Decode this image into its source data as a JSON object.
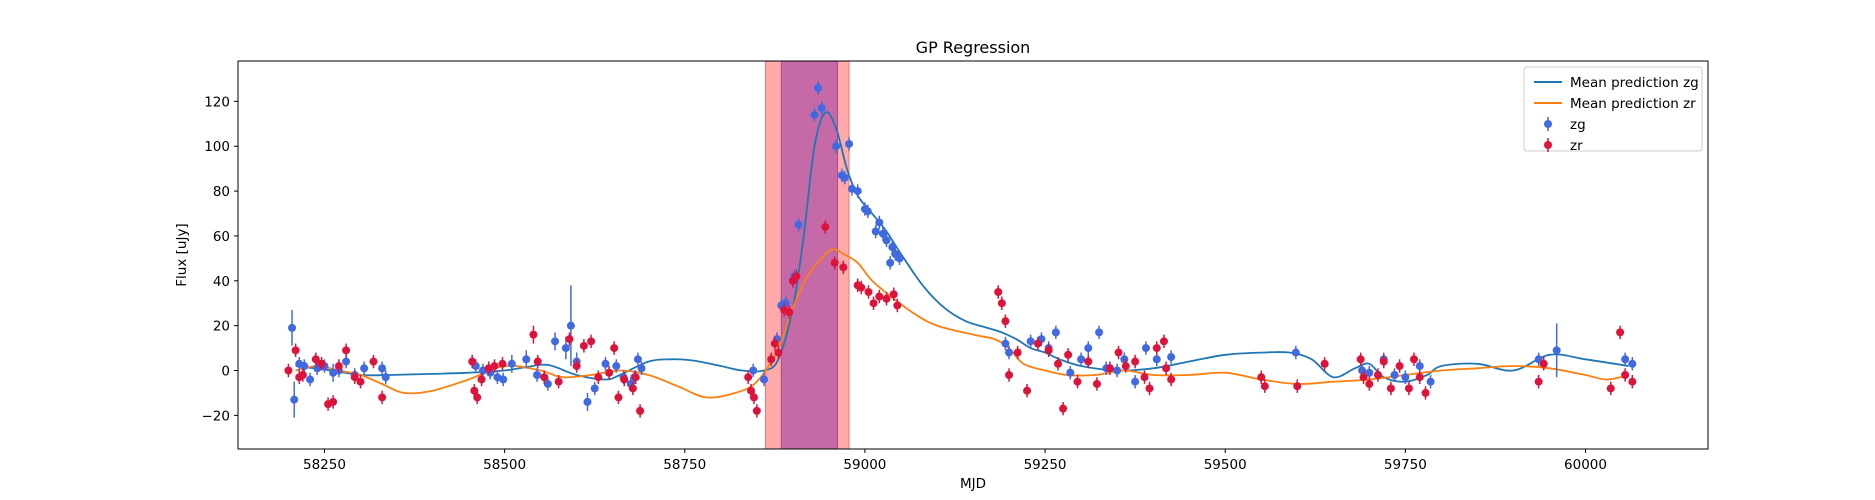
{
  "chart_data": {
    "type": "scatter",
    "title": "GP Regression",
    "xlabel": "MJD",
    "ylabel": "Flux [uJy]",
    "xlim": [
      58130,
      60170
    ],
    "ylim": [
      -35,
      138
    ],
    "xticks": [
      58250,
      58500,
      58750,
      59000,
      59250,
      59500,
      59750,
      60000
    ],
    "yticks": [
      -20,
      0,
      20,
      40,
      60,
      80,
      100,
      120
    ],
    "colors": {
      "zg": "#4169e1",
      "zr": "#dc143c",
      "mean_zg": "#1f77b4",
      "mean_zr": "#ff7f0e",
      "span_outer": "#ff9a9a",
      "span_inner": "#c266a6"
    },
    "spans": [
      {
        "name": "outer-window",
        "x0": 58862,
        "x1": 58978
      },
      {
        "name": "inner-window",
        "x0": 58884,
        "x1": 58962
      }
    ],
    "legend": [
      {
        "label": "Mean prediction zg",
        "kind": "line",
        "color_key": "mean_zg"
      },
      {
        "label": "Mean prediction zr",
        "kind": "line",
        "color_key": "mean_zr"
      },
      {
        "label": "zg",
        "kind": "errorbar",
        "color_key": "zg"
      },
      {
        "label": "zr",
        "kind": "errorbar",
        "color_key": "zr"
      }
    ],
    "legend_position": "top-right",
    "mean_prediction": [
      {
        "name": "Mean prediction zg",
        "x": [
          58210,
          58260,
          58300,
          58340,
          58400,
          58450,
          58500,
          58530,
          58560,
          58600,
          58640,
          58660,
          58700,
          58730,
          58760,
          58800,
          58830,
          58860,
          58880,
          58900,
          58915,
          58930,
          58945,
          58960,
          58975,
          58990,
          59010,
          59030,
          59050,
          59080,
          59110,
          59140,
          59170,
          59190,
          59210,
          59230,
          59250,
          59270,
          59300,
          59350,
          59400,
          59450,
          59500,
          59550,
          59590,
          59620,
          59650,
          59680,
          59700,
          59720,
          59750,
          59780,
          59800,
          59850,
          59900,
          59950,
          60000,
          60060
        ],
        "y": [
          2,
          0,
          -2,
          -2,
          -1.5,
          -1,
          0,
          1.5,
          2.5,
          -2,
          -4,
          -2,
          4,
          5,
          4.5,
          2,
          0,
          0,
          5,
          28,
          60,
          100,
          115,
          108,
          90,
          78,
          70,
          62,
          52,
          38,
          28,
          22,
          19,
          17,
          14,
          10,
          8,
          5,
          2,
          0,
          1,
          4,
          7,
          8,
          8,
          5,
          -3,
          1,
          3,
          -3,
          -5,
          -2,
          2,
          3,
          0,
          7,
          5,
          2
        ]
      },
      {
        "name": "Mean prediction zr",
        "x": [
          58210,
          58240,
          58270,
          58300,
          58330,
          58360,
          58400,
          58450,
          58500,
          58550,
          58580,
          58620,
          58660,
          58700,
          58740,
          58780,
          58820,
          58850,
          58880,
          58900,
          58920,
          58940,
          58955,
          58970,
          58990,
          59010,
          59040,
          59070,
          59100,
          59150,
          59180,
          59200,
          59220,
          59250,
          59280,
          59320,
          59360,
          59400,
          59450,
          59500,
          59550,
          59600,
          59650,
          59700,
          59750,
          59800,
          59850,
          59900,
          59950,
          60000,
          60030,
          60060
        ],
        "y": [
          0,
          2,
          0,
          -2,
          -6,
          -10,
          -9,
          -4,
          2,
          0,
          -3,
          -2,
          0,
          -2,
          -7,
          -12,
          -10,
          -5,
          10,
          28,
          42,
          50,
          54,
          52,
          48,
          40,
          32,
          25,
          20,
          16,
          14,
          10,
          3,
          0,
          -2,
          -2,
          0,
          -2,
          -2,
          -1,
          -4,
          -6,
          -5,
          -4,
          -2,
          0,
          1,
          2,
          1,
          -2,
          -4,
          -2
        ]
      }
    ],
    "series": [
      {
        "name": "zg",
        "points": [
          [
            58205,
            19,
            8
          ],
          [
            58208,
            -13,
            8
          ],
          [
            58215,
            3,
            3
          ],
          [
            58222,
            2,
            3
          ],
          [
            58230,
            -4,
            3
          ],
          [
            58240,
            1,
            3
          ],
          [
            58250,
            2,
            3
          ],
          [
            58262,
            -1,
            4
          ],
          [
            58270,
            0,
            3
          ],
          [
            58280,
            4,
            3
          ],
          [
            58292,
            -2,
            3
          ],
          [
            58305,
            1,
            3
          ],
          [
            58330,
            1,
            3
          ],
          [
            58335,
            -3,
            3
          ],
          [
            58460,
            2,
            3
          ],
          [
            58470,
            0,
            3
          ],
          [
            58480,
            -1,
            3
          ],
          [
            58490,
            -3,
            3
          ],
          [
            58498,
            -4,
            3
          ],
          [
            58510,
            3,
            4
          ],
          [
            58530,
            5,
            4
          ],
          [
            58545,
            -2,
            3
          ],
          [
            58560,
            -6,
            3
          ],
          [
            58570,
            13,
            4
          ],
          [
            58585,
            10,
            5
          ],
          [
            58592,
            20,
            18
          ],
          [
            58600,
            4,
            4
          ],
          [
            58615,
            -14,
            4
          ],
          [
            58625,
            -8,
            3
          ],
          [
            58640,
            3,
            3
          ],
          [
            58655,
            2,
            3
          ],
          [
            58665,
            -3,
            3
          ],
          [
            58675,
            -6,
            3
          ],
          [
            58680,
            -3,
            3
          ],
          [
            58685,
            5,
            3
          ],
          [
            58690,
            1,
            3
          ],
          [
            58845,
            0,
            3
          ],
          [
            58860,
            -4,
            3
          ],
          [
            58878,
            14,
            3
          ],
          [
            58884,
            29,
            3
          ],
          [
            58890,
            30,
            3
          ],
          [
            58902,
            42,
            3
          ],
          [
            58908,
            65,
            3
          ],
          [
            58930,
            114,
            3
          ],
          [
            58935,
            126,
            3
          ],
          [
            58940,
            117,
            3
          ],
          [
            58960,
            100,
            3
          ],
          [
            58968,
            87,
            3
          ],
          [
            58972,
            86,
            3
          ],
          [
            58978,
            101,
            3
          ],
          [
            58982,
            81,
            3
          ],
          [
            58990,
            80,
            3
          ],
          [
            59000,
            72,
            3
          ],
          [
            59004,
            71,
            3
          ],
          [
            59015,
            62,
            3
          ],
          [
            59020,
            66,
            3
          ],
          [
            59025,
            61,
            3
          ],
          [
            59030,
            58,
            3
          ],
          [
            59035,
            48,
            3
          ],
          [
            59038,
            55,
            3
          ],
          [
            59042,
            52,
            3
          ],
          [
            59048,
            50,
            3
          ],
          [
            59195,
            12,
            3
          ],
          [
            59200,
            8,
            3
          ],
          [
            59230,
            13,
            3
          ],
          [
            59245,
            14,
            3
          ],
          [
            59255,
            10,
            3
          ],
          [
            59265,
            17,
            3
          ],
          [
            59285,
            -1,
            3
          ],
          [
            59300,
            5,
            3
          ],
          [
            59310,
            10,
            3
          ],
          [
            59325,
            17,
            3
          ],
          [
            59335,
            1,
            3
          ],
          [
            59350,
            0,
            3
          ],
          [
            59360,
            5,
            3
          ],
          [
            59375,
            -5,
            3
          ],
          [
            59390,
            10,
            3
          ],
          [
            59405,
            5,
            3
          ],
          [
            59425,
            6,
            3
          ],
          [
            59598,
            8,
            3
          ],
          [
            59690,
            0,
            3
          ],
          [
            59700,
            -1,
            3
          ],
          [
            59720,
            5,
            3
          ],
          [
            59735,
            -2,
            3
          ],
          [
            59750,
            -3,
            3
          ],
          [
            59770,
            2,
            3
          ],
          [
            59785,
            -5,
            3
          ],
          [
            59935,
            5,
            3
          ],
          [
            59960,
            9,
            12
          ],
          [
            60055,
            5,
            3
          ],
          [
            60065,
            3,
            3
          ]
        ]
      },
      {
        "name": "zr",
        "points": [
          [
            58200,
            0,
            3
          ],
          [
            58210,
            9,
            3
          ],
          [
            58215,
            -3,
            3
          ],
          [
            58220,
            -2,
            3
          ],
          [
            58238,
            5,
            3
          ],
          [
            58246,
            3,
            3
          ],
          [
            58255,
            -15,
            3
          ],
          [
            58262,
            -14,
            3
          ],
          [
            58270,
            2,
            3
          ],
          [
            58280,
            9,
            3
          ],
          [
            58292,
            -3,
            3
          ],
          [
            58300,
            -5,
            3
          ],
          [
            58318,
            4,
            3
          ],
          [
            58330,
            -12,
            3
          ],
          [
            58455,
            4,
            3
          ],
          [
            58458,
            -9,
            3
          ],
          [
            58462,
            -12,
            3
          ],
          [
            58468,
            -4,
            3
          ],
          [
            58478,
            1,
            3
          ],
          [
            58486,
            2,
            3
          ],
          [
            58497,
            3,
            3
          ],
          [
            58540,
            16,
            4
          ],
          [
            58546,
            4,
            3
          ],
          [
            58555,
            -3,
            3
          ],
          [
            58575,
            -5,
            3
          ],
          [
            58590,
            14,
            3
          ],
          [
            58600,
            2,
            3
          ],
          [
            58610,
            11,
            3
          ],
          [
            58620,
            13,
            3
          ],
          [
            58630,
            -3,
            3
          ],
          [
            58645,
            -1,
            3
          ],
          [
            58652,
            10,
            3
          ],
          [
            58658,
            -12,
            3
          ],
          [
            58666,
            -4,
            3
          ],
          [
            58678,
            -8,
            3
          ],
          [
            58682,
            -3,
            3
          ],
          [
            58688,
            -18,
            3
          ],
          [
            58838,
            -3,
            3
          ],
          [
            58842,
            -9,
            3
          ],
          [
            58846,
            -12,
            3
          ],
          [
            58850,
            -18,
            3
          ],
          [
            58870,
            5,
            3
          ],
          [
            58875,
            12,
            3
          ],
          [
            58880,
            8,
            3
          ],
          [
            58888,
            27,
            3
          ],
          [
            58895,
            26,
            3
          ],
          [
            58900,
            40,
            3
          ],
          [
            58905,
            42,
            3
          ],
          [
            58945,
            64,
            3
          ],
          [
            58958,
            48,
            3
          ],
          [
            58970,
            46,
            3
          ],
          [
            58990,
            38,
            3
          ],
          [
            58995,
            37,
            3
          ],
          [
            59005,
            35,
            3
          ],
          [
            59012,
            30,
            3
          ],
          [
            59020,
            33,
            3
          ],
          [
            59030,
            32,
            3
          ],
          [
            59040,
            34,
            3
          ],
          [
            59045,
            29,
            3
          ],
          [
            59185,
            35,
            3
          ],
          [
            59190,
            30,
            3
          ],
          [
            59195,
            22,
            3
          ],
          [
            59200,
            -2,
            3
          ],
          [
            59212,
            8,
            3
          ],
          [
            59225,
            -9,
            3
          ],
          [
            59240,
            12,
            3
          ],
          [
            59255,
            9,
            3
          ],
          [
            59268,
            3,
            3
          ],
          [
            59275,
            -17,
            3
          ],
          [
            59282,
            7,
            3
          ],
          [
            59295,
            -5,
            3
          ],
          [
            59310,
            4,
            3
          ],
          [
            59322,
            -6,
            3
          ],
          [
            59340,
            1,
            3
          ],
          [
            59352,
            8,
            3
          ],
          [
            59362,
            2,
            3
          ],
          [
            59375,
            4,
            3
          ],
          [
            59388,
            -3,
            3
          ],
          [
            59395,
            -8,
            3
          ],
          [
            59405,
            10,
            3
          ],
          [
            59415,
            13,
            3
          ],
          [
            59418,
            1,
            3
          ],
          [
            59425,
            -4,
            3
          ],
          [
            59550,
            -3,
            3
          ],
          [
            59555,
            -7,
            3
          ],
          [
            59600,
            -7,
            3
          ],
          [
            59638,
            3,
            3
          ],
          [
            59688,
            5,
            3
          ],
          [
            59692,
            -3,
            3
          ],
          [
            59700,
            -6,
            3
          ],
          [
            59712,
            -2,
            3
          ],
          [
            59720,
            4,
            3
          ],
          [
            59730,
            -8,
            3
          ],
          [
            59742,
            2,
            3
          ],
          [
            59755,
            -8,
            3
          ],
          [
            59762,
            5,
            3
          ],
          [
            59770,
            -3,
            3
          ],
          [
            59778,
            -10,
            3
          ],
          [
            59935,
            -5,
            3
          ],
          [
            59942,
            3,
            3
          ],
          [
            60035,
            -8,
            3
          ],
          [
            60048,
            17,
            3
          ],
          [
            60055,
            -2,
            3
          ],
          [
            60065,
            -5,
            3
          ]
        ]
      }
    ]
  }
}
